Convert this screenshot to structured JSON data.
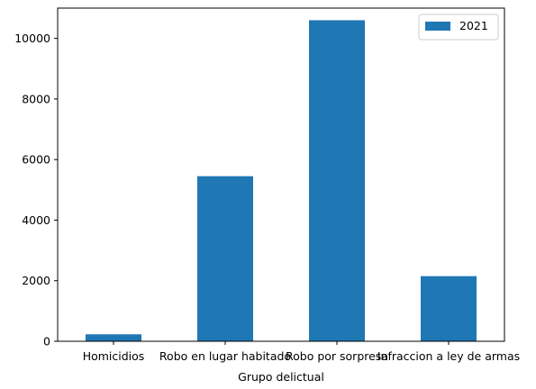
{
  "chart_data": {
    "type": "bar",
    "title": "",
    "xlabel": "Grupo delictual",
    "ylabel": "",
    "categories": [
      "Homicidios",
      "Robo en lugar habitado",
      "Robo por sorpresa",
      "Infraccion a ley de armas"
    ],
    "series": [
      {
        "name": "2021",
        "values": [
          230,
          5450,
          10600,
          2150
        ],
        "color": "#1f77b4"
      }
    ],
    "ylim": [
      0,
      11000
    ],
    "yticks": [
      0,
      2000,
      4000,
      6000,
      8000,
      10000
    ],
    "grid": false,
    "legend_position": "top-right"
  }
}
